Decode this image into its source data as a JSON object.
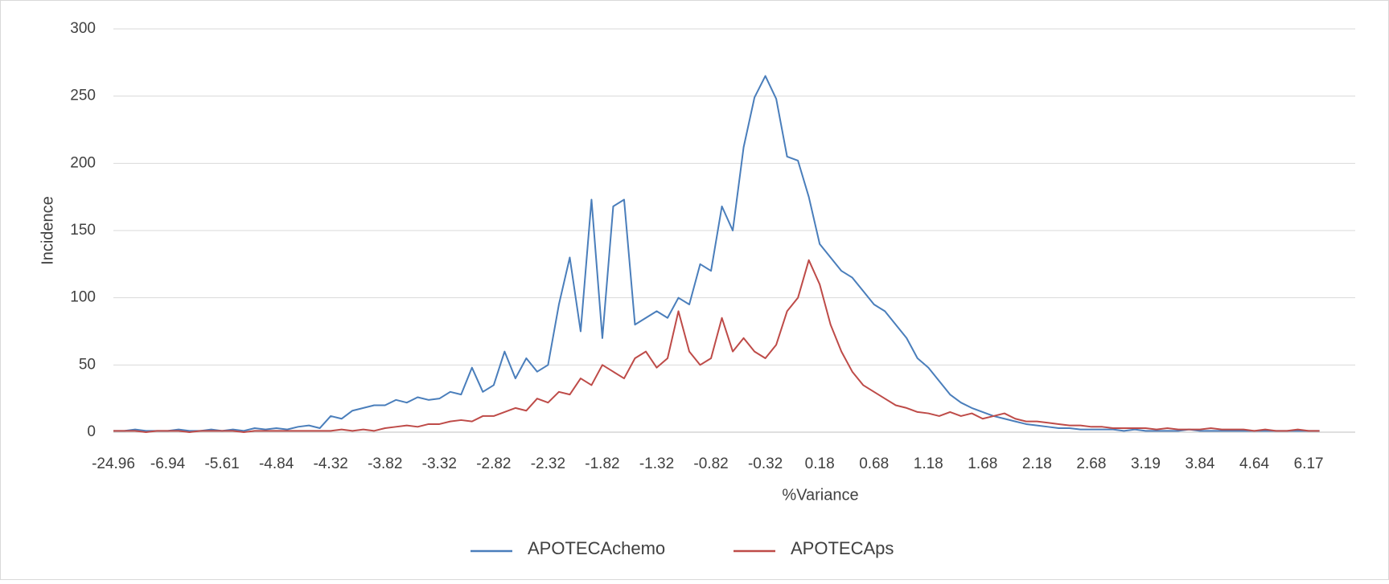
{
  "chart_data": {
    "type": "line",
    "x_label": "%Variance",
    "y_label": "Incidence",
    "categories": [
      "-24.96",
      null,
      null,
      null,
      null,
      "-6.94",
      null,
      null,
      null,
      null,
      "-5.61",
      null,
      null,
      null,
      null,
      "-4.84",
      null,
      null,
      null,
      null,
      "-4.32",
      null,
      null,
      null,
      null,
      "-3.82",
      null,
      null,
      null,
      null,
      "-3.32",
      null,
      null,
      null,
      null,
      "-2.82",
      null,
      null,
      null,
      null,
      "-2.32",
      null,
      null,
      null,
      null,
      "-1.82",
      null,
      null,
      null,
      null,
      "-1.32",
      null,
      null,
      null,
      null,
      "-0.82",
      null,
      null,
      null,
      null,
      "-0.32",
      null,
      null,
      null,
      null,
      "0.18",
      null,
      null,
      null,
      null,
      "0.68",
      null,
      null,
      null,
      null,
      "1.18",
      null,
      null,
      null,
      null,
      "1.68",
      null,
      null,
      null,
      null,
      "2.18",
      null,
      null,
      null,
      null,
      "2.68",
      null,
      null,
      null,
      null,
      "3.19",
      null,
      null,
      null,
      null,
      "3.84",
      null,
      null,
      null,
      null,
      "4.64",
      null,
      null,
      null,
      null,
      "6.17",
      null
    ],
    "series": [
      {
        "name": "APOTECAchemo",
        "color": "#4a7ebb",
        "values": [
          1,
          1,
          2,
          1,
          1,
          1,
          2,
          1,
          1,
          2,
          1,
          2,
          1,
          3,
          2,
          3,
          2,
          4,
          5,
          3,
          12,
          10,
          16,
          18,
          20,
          20,
          24,
          22,
          26,
          24,
          25,
          30,
          28,
          48,
          30,
          35,
          60,
          40,
          55,
          45,
          50,
          95,
          130,
          75,
          173,
          70,
          168,
          173,
          80,
          85,
          90,
          85,
          100,
          95,
          125,
          120,
          168,
          150,
          212,
          249,
          265,
          248,
          205,
          202,
          175,
          140,
          130,
          120,
          115,
          105,
          95,
          90,
          80,
          70,
          55,
          48,
          38,
          28,
          22,
          18,
          15,
          12,
          10,
          8,
          6,
          5,
          4,
          3,
          3,
          2,
          2,
          2,
          2,
          1,
          2,
          1,
          1,
          1,
          1,
          2,
          1,
          1,
          1,
          1,
          1,
          1,
          1,
          1,
          1,
          1,
          1,
          1
        ]
      },
      {
        "name": "APOTECAps",
        "color": "#be4b48",
        "values": [
          1,
          1,
          1,
          0,
          1,
          1,
          1,
          0,
          1,
          1,
          1,
          1,
          0,
          1,
          1,
          1,
          1,
          1,
          1,
          1,
          1,
          2,
          1,
          2,
          1,
          3,
          4,
          5,
          4,
          6,
          6,
          8,
          9,
          8,
          12,
          12,
          15,
          18,
          16,
          25,
          22,
          30,
          28,
          40,
          35,
          50,
          45,
          40,
          55,
          60,
          48,
          55,
          90,
          60,
          50,
          55,
          85,
          60,
          70,
          60,
          55,
          65,
          90,
          100,
          128,
          110,
          80,
          60,
          45,
          35,
          30,
          25,
          20,
          18,
          15,
          14,
          12,
          15,
          12,
          14,
          10,
          12,
          14,
          10,
          8,
          8,
          7,
          6,
          5,
          5,
          4,
          4,
          3,
          3,
          3,
          3,
          2,
          3,
          2,
          2,
          2,
          3,
          2,
          2,
          2,
          1,
          2,
          1,
          1,
          2,
          1,
          1
        ]
      }
    ],
    "ylim": [
      0,
      300
    ],
    "yticks": [
      0,
      50,
      100,
      150,
      200,
      250,
      300
    ],
    "grid": true,
    "legend": "bottom"
  }
}
